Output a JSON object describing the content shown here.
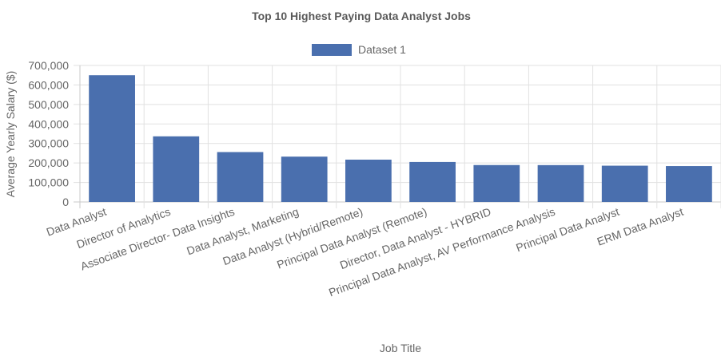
{
  "chart_data": {
    "type": "bar",
    "title": "Top 10 Highest Paying Data Analyst Jobs",
    "xlabel": "Job Title",
    "ylabel": "Average Yearly Salary ($)",
    "ylim": [
      0,
      700000
    ],
    "yticks": [
      "0",
      "100,000",
      "200,000",
      "300,000",
      "400,000",
      "500,000",
      "600,000",
      "700,000"
    ],
    "grid": true,
    "legend_position": "top",
    "categories": [
      "Data Analyst",
      "Director of Analytics",
      "Associate Director- Data Insights",
      "Data Analyst, Marketing",
      "Data Analyst (Hybrid/Remote)",
      "Principal Data Analyst (Remote)",
      "Director, Data Analyst - HYBRID",
      "Principal Data Analyst, AV Performance Analysis",
      "Principal Data Analyst",
      "ERM Data Analyst"
    ],
    "series": [
      {
        "name": "Dataset 1",
        "color": "#4a6fae",
        "values": [
          650000,
          336500,
          255830,
          232423,
          217000,
          205000,
          189309,
          189000,
          186000,
          184000
        ]
      }
    ]
  }
}
